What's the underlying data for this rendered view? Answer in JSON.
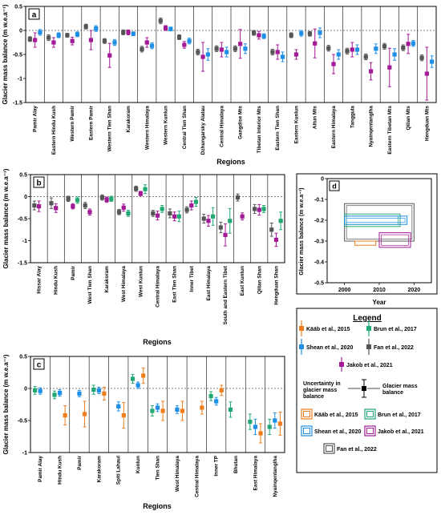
{
  "colors": {
    "kaab": "#f07d1c",
    "brun": "#22a873",
    "shean": "#1f8fe6",
    "fan": "#555555",
    "jakob": "#a21a96"
  },
  "legend": {
    "title": "Legend",
    "kaab": "Kääb et al., 2015",
    "brun": "Brun et al., 2017",
    "shean": "Shean et al., 2020",
    "fan": "Fan et al., 2022",
    "jakob": "Jakob et al., 2021",
    "uncertainty_label": "Uncertainty in glacier mass balance",
    "point_label": "Glacier mass balance"
  },
  "chart_data": [
    {
      "panel": "a",
      "type": "scatter",
      "xlabel": "Regions",
      "ylabel": "Glacier mass balance (m w.e.a⁻¹)",
      "ylim": [
        -1.5,
        0.5
      ],
      "yticks": [
        0.5,
        0,
        -0.5,
        -1,
        -1.5
      ],
      "tick_labels": [
        "0.5",
        "0",
        "-0.5",
        "-1",
        "-1.5"
      ],
      "categories": [
        "Pamir Alay",
        "Eastern Hindu Kush",
        "Western Pamir",
        "Eastern Pamir",
        "Western Tien Shan",
        "Karakoram",
        "Western Himalaya",
        "Western Kunlun",
        "Central Tien Shan",
        "Dzhungarsky Alatau",
        "Central Himalaya",
        "Gangdise Mts",
        "Tibetan Interior Mts",
        "Eastern Tien Shan",
        "Eastern Kunlun",
        "Altun Mts",
        "Eastern Himalaya",
        "Tanggula",
        "Nyainqentanglha",
        "Eastern Tibetan Mts",
        "Qilian Mts",
        "Hengduan Mts"
      ],
      "series": [
        {
          "key": "fan",
          "values": [
            -0.18,
            -0.15,
            -0.1,
            0.08,
            -0.22,
            -0.04,
            -0.39,
            0.2,
            -0.14,
            -0.45,
            -0.38,
            -0.38,
            -0.05,
            -0.45,
            -0.1,
            -0.07,
            -0.37,
            -0.43,
            -0.55,
            -0.33,
            -0.36,
            -0.57
          ],
          "errors": [
            0.05,
            0.06,
            0.04,
            0.05,
            0.05,
            0.05,
            0.06,
            0.06,
            0.05,
            0.06,
            0.06,
            0.06,
            0.05,
            0.06,
            0.05,
            0.05,
            0.06,
            0.06,
            0.06,
            0.06,
            0.06,
            0.06
          ]
        },
        {
          "key": "jakob",
          "values": [
            -0.2,
            -0.25,
            -0.22,
            -0.2,
            -0.52,
            -0.04,
            -0.25,
            0.05,
            -0.3,
            -0.55,
            -0.4,
            -0.28,
            -0.1,
            -0.45,
            -0.5,
            -0.27,
            -0.7,
            -0.4,
            -0.85,
            -0.77,
            -0.28,
            -0.9
          ],
          "errors": [
            0.15,
            0.1,
            0.08,
            0.2,
            0.25,
            0.05,
            0.1,
            0.05,
            0.07,
            0.3,
            0.15,
            0.3,
            0.08,
            0.15,
            0.1,
            0.3,
            0.2,
            0.15,
            0.18,
            0.4,
            0.2,
            0.55
          ]
        },
        {
          "key": "shean",
          "values": [
            -0.04,
            -0.1,
            -0.08,
            0.04,
            -0.25,
            -0.07,
            -0.32,
            0.03,
            -0.22,
            -0.5,
            -0.45,
            -0.38,
            -0.12,
            -0.55,
            -0.06,
            -0.05,
            -0.5,
            -0.4,
            -0.38,
            -0.5,
            -0.27,
            -0.65
          ],
          "errors": [
            0.06,
            0.05,
            0.05,
            0.06,
            0.06,
            0.04,
            0.06,
            0.04,
            0.06,
            0.12,
            0.1,
            0.1,
            0.05,
            0.1,
            0.06,
            0.1,
            0.1,
            0.1,
            0.1,
            0.12,
            0.06,
            0.12
          ]
        }
      ]
    },
    {
      "panel": "b",
      "type": "scatter",
      "xlabel": "Regions",
      "ylabel": "Glacier mass balance (m w.e.a⁻¹)",
      "ylim": [
        -1.5,
        0.5
      ],
      "yticks": [
        0.5,
        0,
        -0.5,
        -1,
        -1.5
      ],
      "tick_labels": [
        "0.5",
        "0",
        "-0.5",
        "-1",
        "-1.5"
      ],
      "categories": [
        "Hissar Alay",
        "Hindu Kush",
        "Pamir",
        "West Tien Shan",
        "Karakoram",
        "West Himalaya",
        "West Kunlun",
        "Central Himalaya",
        "East Tien Shan",
        "Inner Tibet",
        "East Himalaya",
        "South and Eastern Tibet",
        "East Kunlun",
        "Qilian Shan",
        "Hengduan Shan"
      ],
      "series": [
        {
          "key": "fan",
          "values": [
            -0.2,
            -0.15,
            -0.05,
            -0.2,
            -0.02,
            -0.35,
            0.18,
            -0.38,
            -0.38,
            -0.3,
            -0.5,
            -0.7,
            -0.02,
            -0.28,
            -0.75
          ],
          "errors": [
            0.1,
            0.12,
            0.06,
            0.07,
            0.06,
            0.06,
            0.06,
            0.07,
            0.1,
            0.07,
            0.1,
            0.12,
            0.08,
            0.1,
            0.15
          ]
        },
        {
          "key": "jakob",
          "values": [
            -0.22,
            -0.26,
            -0.22,
            -0.35,
            -0.07,
            -0.25,
            0.07,
            -0.43,
            -0.45,
            -0.2,
            -0.55,
            -0.87,
            -0.45,
            -0.3,
            -0.98
          ],
          "errors": [
            0.12,
            0.1,
            0.06,
            0.07,
            0.06,
            0.08,
            0.05,
            0.1,
            0.1,
            0.1,
            0.12,
            0.25,
            0.08,
            0.12,
            0.15
          ]
        },
        {
          "key": "brun",
          "values": [
            null,
            null,
            -0.08,
            null,
            -0.05,
            -0.38,
            0.17,
            -0.28,
            -0.45,
            -0.12,
            -0.45,
            -0.55,
            null,
            -0.28,
            -0.55
          ],
          "errors": [
            null,
            null,
            0.07,
            null,
            0.06,
            0.07,
            0.1,
            0.08,
            0.12,
            0.1,
            0.2,
            0.28,
            null,
            0.08,
            0.2
          ]
        }
      ]
    },
    {
      "panel": "c",
      "type": "scatter",
      "xlabel": "Regions",
      "ylabel": "Glacier mass balance (m w.e.a⁻¹)",
      "ylim": [
        -1.0,
        0.5
      ],
      "yticks": [
        0.5,
        0,
        -0.5,
        -1
      ],
      "tick_labels": [
        "0.5",
        "0",
        "-0.5",
        "-1"
      ],
      "categories": [
        "Pamir Alay",
        "Hindu Kush",
        "Pamir",
        "Karakoram",
        "Spiti Lahaul",
        "Kunlun",
        "Tien Shan",
        "West Himalaya",
        "Central Himalaya",
        "Inner TP",
        "Bhutan",
        "East Himalaya",
        "Nyainqentanglha"
      ],
      "series": [
        {
          "key": "brun",
          "values": [
            -0.03,
            -0.1,
            null,
            -0.02,
            null,
            0.15,
            -0.35,
            null,
            null,
            -0.12,
            -0.33,
            -0.52,
            -0.6
          ],
          "errors": [
            0.06,
            0.06,
            null,
            0.07,
            null,
            0.07,
            0.08,
            null,
            null,
            0.07,
            0.12,
            0.12,
            0.12
          ]
        },
        {
          "key": "shean",
          "values": [
            -0.04,
            -0.07,
            -0.08,
            -0.03,
            -0.28,
            0.05,
            -0.3,
            -0.33,
            null,
            -0.2,
            null,
            -0.6,
            -0.5
          ],
          "errors": [
            0.05,
            0.05,
            0.05,
            0.05,
            0.07,
            0.05,
            0.06,
            0.06,
            null,
            0.06,
            null,
            0.12,
            0.12
          ]
        },
        {
          "key": "kaab",
          "values": [
            null,
            -0.42,
            -0.4,
            -0.08,
            -0.42,
            0.2,
            -0.35,
            -0.35,
            -0.3,
            -0.03,
            null,
            -0.7,
            -0.55
          ],
          "errors": [
            null,
            0.15,
            0.2,
            0.1,
            0.2,
            0.12,
            0.15,
            0.15,
            0.1,
            0.08,
            null,
            0.15,
            0.18
          ]
        }
      ]
    },
    {
      "panel": "d",
      "type": "rect",
      "xlabel": "Year",
      "ylabel": "Glacier mass balance (m w.e.a⁻¹)",
      "xlim": [
        1995,
        2025
      ],
      "ylim": [
        -0.5,
        -0.0
      ],
      "xticks": [
        2000,
        2010,
        2020
      ],
      "yticks": [
        0,
        -0.1,
        -0.2,
        -0.3,
        -0.4,
        -0.5
      ],
      "xtick_labels": [
        "2000",
        "2010",
        "2020"
      ],
      "tick_labels": [
        "0",
        "-0.1",
        "-0.2",
        "-0.3",
        "-0.4",
        "-0.5"
      ],
      "boxes": [
        {
          "key": "fan",
          "x": [
            2000,
            2020
          ],
          "y": [
            -0.3,
            -0.12
          ]
        },
        {
          "key": "brun",
          "x": [
            2000,
            2016
          ],
          "y": [
            -0.23,
            -0.17
          ]
        },
        {
          "key": "shean",
          "x": [
            2000,
            2018
          ],
          "y": [
            -0.22,
            -0.18
          ]
        },
        {
          "key": "kaab",
          "x": [
            2003,
            2009
          ],
          "y": [
            -0.32,
            -0.3
          ]
        },
        {
          "key": "jakob",
          "x": [
            2010,
            2019
          ],
          "y": [
            -0.33,
            -0.26
          ]
        }
      ]
    }
  ]
}
